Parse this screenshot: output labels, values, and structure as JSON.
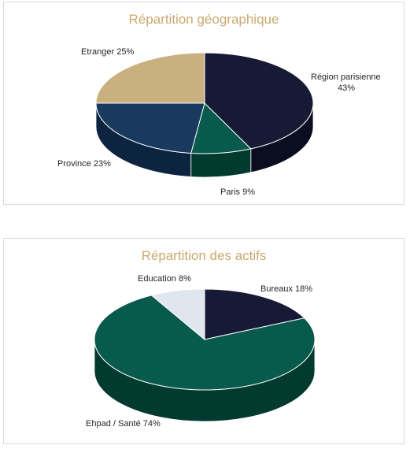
{
  "title_color": "#c9a96e",
  "chart_data": [
    {
      "type": "pie",
      "title": "Répartition géographique",
      "slices": [
        {
          "label": "Région parisienne",
          "value_label": "43%",
          "value": 43,
          "color": "#161a35",
          "side": "#0b0e20"
        },
        {
          "label": "Paris",
          "value_label": "9%",
          "value": 9,
          "color": "#075a4c",
          "side": "#033a30"
        },
        {
          "label": "Province",
          "value_label": "23%",
          "value": 23,
          "color": "#173a5e",
          "side": "#0d2440"
        },
        {
          "label": "Etranger",
          "value_label": "25%",
          "value": 25,
          "color": "#c9b07e",
          "side": "#9c875c"
        }
      ]
    },
    {
      "type": "pie",
      "title": "Répartition des actifs",
      "slices": [
        {
          "label": "Bureaux",
          "value_label": "18%",
          "value": 18,
          "color": "#161a35",
          "side": "#0b0e20"
        },
        {
          "label": "Ehpad / Santé",
          "value_label": "74%",
          "value": 74,
          "color": "#075a4c",
          "side": "#033a30"
        },
        {
          "label": "Education",
          "value_label": "8%",
          "value": 8,
          "color": "#dfe6ee",
          "side": "#b7c0cb"
        }
      ]
    }
  ]
}
